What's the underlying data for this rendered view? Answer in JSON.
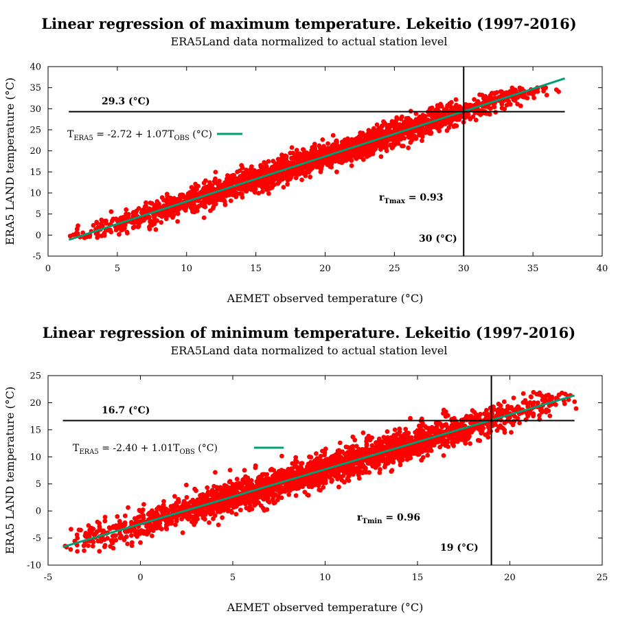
{
  "colors": {
    "points": "#ff0000",
    "regression": "#009e73",
    "reference": "#000000"
  },
  "chart_data": [
    {
      "type": "scatter",
      "title": "Linear regression of maximum temperature. Lekeitio (1997-2016)",
      "subtitle": "ERA5Land data normalized to actual station level",
      "xlabel": "AEMET observed temperature (°C)",
      "ylabel": "ERA5 LAND temperature (°C)",
      "xlim": [
        0,
        40
      ],
      "ylim": [
        -5,
        40
      ],
      "xticks": [
        "0",
        "5",
        "10",
        "15",
        "20",
        "25",
        "30",
        "35",
        "40"
      ],
      "yticks": [
        "-5",
        "0",
        "5",
        "10",
        "15",
        "20",
        "25",
        "30",
        "35",
        "40"
      ],
      "regression": {
        "intercept": -2.72,
        "slope": 1.07,
        "x_range": [
          1.5,
          37.3
        ]
      },
      "legend": {
        "prefix": "T",
        "sub1": "ERA5",
        "middle": " = -2.72 + 1.07T",
        "sub2": "OBS",
        "suffix": " (°C)"
      },
      "correlation": {
        "prefix": "r",
        "sub": "Tmax",
        "suffix": " = 0.93"
      },
      "hline": {
        "y": 29.3,
        "label": "29.3 (°C)",
        "x_range": [
          1.5,
          37.3
        ]
      },
      "vline": {
        "x": 30,
        "label": "30 (°C)"
      },
      "point_range": {
        "x": [
          1.5,
          37.5
        ],
        "y": [
          -1,
          35
        ]
      }
    },
    {
      "type": "scatter",
      "title": "Linear regression of minimum temperature. Lekeitio (1997-2016)",
      "subtitle": "ERA5Land data normalized to actual station level",
      "xlabel": "AEMET observed temperature (°C)",
      "ylabel": "ERA5 LAND temperature (°C)",
      "xlim": [
        -5,
        25
      ],
      "ylim": [
        -10,
        25
      ],
      "xticks": [
        "-5",
        "0",
        "5",
        "10",
        "15",
        "20",
        "25"
      ],
      "yticks": [
        "-10",
        "-5",
        "0",
        "5",
        "10",
        "15",
        "20",
        "25"
      ],
      "regression": {
        "intercept": -2.4,
        "slope": 1.01,
        "x_range": [
          -4.2,
          23.5
        ]
      },
      "legend": {
        "prefix": "T",
        "sub1": "ERA5",
        "middle": " = -2.40 + 1.01T",
        "sub2": "OBS",
        "suffix": " (°C)"
      },
      "correlation": {
        "prefix": "r",
        "sub": "Tmin",
        "suffix": " = 0.96"
      },
      "hline": {
        "y": 16.7,
        "label": "16.7 (°C)",
        "x_range": [
          -4.2,
          23.5
        ]
      },
      "vline": {
        "x": 19,
        "label": "19 (°C)"
      },
      "point_range": {
        "x": [
          -4.2,
          23.6
        ],
        "y": [
          -7.5,
          22
        ]
      }
    }
  ]
}
